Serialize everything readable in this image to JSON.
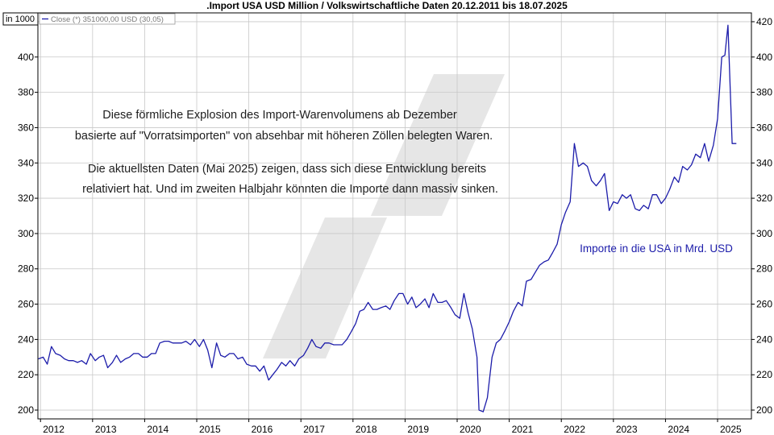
{
  "title": ".Import USA USD Million / Volkswirtschaftliche Daten 20.12.2011 bis 18.07.2025",
  "unit_label": "in 1000",
  "legend_label": "Close (*) 351000,00 USD (30,05)",
  "annotations": {
    "para1_line1": "Diese förmliche Explosion des Import-Warenvolumens ab Dezember",
    "para1_line2": "basierte auf \"Vorratsimporten\" von absehbar mit höheren Zöllen belegten Waren.",
    "para2_line1": "Die aktuellsten Daten (Mai 2025) zeigen, dass sich diese Entwicklung bereits",
    "para2_line2": "relativiert hat. Und im zweiten Halbjahr könnten die Importe dann massiv sinken.",
    "series_note": "Importe in die USA in Mrd. USD"
  },
  "colors": {
    "line": "#1c1caa",
    "grid": "#c8c8c8",
    "watermark": "#e6e6e6"
  },
  "chart_data": {
    "type": "line",
    "legend_placement": "top-left",
    "grid": true,
    "ylim": [
      195,
      425
    ],
    "xlim": [
      2011.95,
      2025.65
    ],
    "y_ticks": [
      200,
      220,
      240,
      260,
      280,
      300,
      320,
      340,
      360,
      380,
      400,
      420
    ],
    "y_ticks_left": [
      200,
      220,
      240,
      260,
      280,
      300,
      320,
      340,
      360,
      380,
      400
    ],
    "x_ticks": [
      2012,
      2013,
      2014,
      2015,
      2016,
      2017,
      2018,
      2019,
      2020,
      2021,
      2022,
      2023,
      2024,
      2025
    ],
    "series": [
      {
        "points": [
          [
            2011.96,
            229
          ],
          [
            2012.05,
            230
          ],
          [
            2012.13,
            226
          ],
          [
            2012.21,
            236
          ],
          [
            2012.29,
            232
          ],
          [
            2012.38,
            231
          ],
          [
            2012.46,
            229
          ],
          [
            2012.54,
            228
          ],
          [
            2012.63,
            228
          ],
          [
            2012.71,
            227
          ],
          [
            2012.79,
            228
          ],
          [
            2012.88,
            226
          ],
          [
            2012.96,
            232
          ],
          [
            2013.05,
            228
          ],
          [
            2013.13,
            230
          ],
          [
            2013.21,
            231
          ],
          [
            2013.29,
            224
          ],
          [
            2013.38,
            227
          ],
          [
            2013.46,
            231
          ],
          [
            2013.54,
            227
          ],
          [
            2013.63,
            229
          ],
          [
            2013.71,
            230
          ],
          [
            2013.79,
            232
          ],
          [
            2013.88,
            232
          ],
          [
            2013.96,
            230
          ],
          [
            2014.05,
            230
          ],
          [
            2014.13,
            232
          ],
          [
            2014.21,
            232
          ],
          [
            2014.29,
            238
          ],
          [
            2014.38,
            239
          ],
          [
            2014.46,
            239
          ],
          [
            2014.54,
            238
          ],
          [
            2014.63,
            238
          ],
          [
            2014.71,
            238
          ],
          [
            2014.79,
            239
          ],
          [
            2014.88,
            237
          ],
          [
            2014.96,
            240
          ],
          [
            2015.05,
            236
          ],
          [
            2015.13,
            240
          ],
          [
            2015.21,
            234
          ],
          [
            2015.29,
            224
          ],
          [
            2015.38,
            238
          ],
          [
            2015.46,
            231
          ],
          [
            2015.54,
            230
          ],
          [
            2015.63,
            232
          ],
          [
            2015.71,
            232
          ],
          [
            2015.79,
            229
          ],
          [
            2015.88,
            230
          ],
          [
            2015.96,
            226
          ],
          [
            2016.05,
            225
          ],
          [
            2016.13,
            225
          ],
          [
            2016.21,
            222
          ],
          [
            2016.29,
            225
          ],
          [
            2016.38,
            217
          ],
          [
            2016.46,
            220
          ],
          [
            2016.54,
            223
          ],
          [
            2016.63,
            227
          ],
          [
            2016.71,
            225
          ],
          [
            2016.79,
            228
          ],
          [
            2016.88,
            225
          ],
          [
            2016.96,
            229
          ],
          [
            2017.05,
            231
          ],
          [
            2017.13,
            235
          ],
          [
            2017.21,
            240
          ],
          [
            2017.29,
            236
          ],
          [
            2017.38,
            235
          ],
          [
            2017.46,
            238
          ],
          [
            2017.54,
            238
          ],
          [
            2017.63,
            237
          ],
          [
            2017.71,
            237
          ],
          [
            2017.79,
            237
          ],
          [
            2017.88,
            240
          ],
          [
            2017.96,
            244
          ],
          [
            2018.05,
            249
          ],
          [
            2018.13,
            256
          ],
          [
            2018.21,
            257
          ],
          [
            2018.29,
            261
          ],
          [
            2018.38,
            257
          ],
          [
            2018.46,
            257
          ],
          [
            2018.54,
            258
          ],
          [
            2018.63,
            259
          ],
          [
            2018.71,
            257
          ],
          [
            2018.79,
            262
          ],
          [
            2018.88,
            266
          ],
          [
            2018.96,
            266
          ],
          [
            2019.05,
            260
          ],
          [
            2019.13,
            264
          ],
          [
            2019.21,
            258
          ],
          [
            2019.29,
            260
          ],
          [
            2019.38,
            263
          ],
          [
            2019.46,
            258
          ],
          [
            2019.54,
            266
          ],
          [
            2019.63,
            261
          ],
          [
            2019.71,
            261
          ],
          [
            2019.79,
            262
          ],
          [
            2019.88,
            258
          ],
          [
            2019.96,
            254
          ],
          [
            2020.05,
            252
          ],
          [
            2020.13,
            266
          ],
          [
            2020.21,
            255
          ],
          [
            2020.29,
            246
          ],
          [
            2020.38,
            230
          ],
          [
            2020.42,
            200
          ],
          [
            2020.5,
            199
          ],
          [
            2020.58,
            207
          ],
          [
            2020.67,
            230
          ],
          [
            2020.75,
            238
          ],
          [
            2020.83,
            240
          ],
          [
            2020.92,
            245
          ],
          [
            2021.0,
            250
          ],
          [
            2021.08,
            256
          ],
          [
            2021.17,
            261
          ],
          [
            2021.25,
            259
          ],
          [
            2021.33,
            273
          ],
          [
            2021.42,
            274
          ],
          [
            2021.5,
            278
          ],
          [
            2021.58,
            282
          ],
          [
            2021.67,
            284
          ],
          [
            2021.75,
            285
          ],
          [
            2021.83,
            289
          ],
          [
            2021.92,
            294
          ],
          [
            2022.0,
            305
          ],
          [
            2022.08,
            312
          ],
          [
            2022.17,
            318
          ],
          [
            2022.25,
            351
          ],
          [
            2022.33,
            338
          ],
          [
            2022.42,
            340
          ],
          [
            2022.5,
            338
          ],
          [
            2022.58,
            330
          ],
          [
            2022.67,
            327
          ],
          [
            2022.75,
            330
          ],
          [
            2022.83,
            334
          ],
          [
            2022.92,
            313
          ],
          [
            2023.0,
            318
          ],
          [
            2023.08,
            317
          ],
          [
            2023.17,
            322
          ],
          [
            2023.25,
            320
          ],
          [
            2023.33,
            322
          ],
          [
            2023.42,
            314
          ],
          [
            2023.5,
            313
          ],
          [
            2023.58,
            316
          ],
          [
            2023.67,
            314
          ],
          [
            2023.75,
            322
          ],
          [
            2023.83,
            322
          ],
          [
            2023.92,
            317
          ],
          [
            2024.0,
            320
          ],
          [
            2024.08,
            325
          ],
          [
            2024.17,
            332
          ],
          [
            2024.25,
            329
          ],
          [
            2024.33,
            338
          ],
          [
            2024.42,
            336
          ],
          [
            2024.5,
            339
          ],
          [
            2024.58,
            345
          ],
          [
            2024.67,
            343
          ],
          [
            2024.75,
            351
          ],
          [
            2024.83,
            341
          ],
          [
            2024.92,
            350
          ],
          [
            2025.0,
            365
          ],
          [
            2025.08,
            400
          ],
          [
            2025.14,
            401
          ],
          [
            2025.2,
            418
          ],
          [
            2025.28,
            351
          ],
          [
            2025.36,
            351
          ]
        ]
      }
    ]
  }
}
